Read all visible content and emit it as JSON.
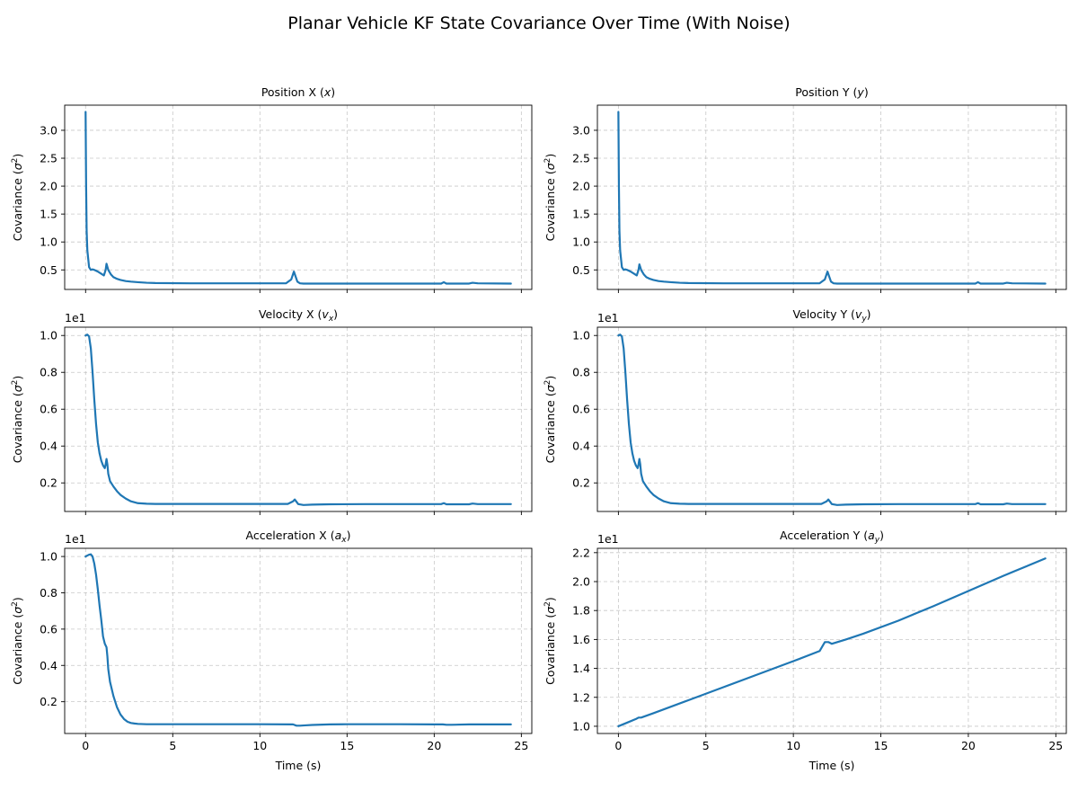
{
  "figure": {
    "title": "Planar Vehicle KF State Covariance Over Time  (With Noise)"
  },
  "chart_data": [
    {
      "type": "line",
      "title": "Position X (x)",
      "title_base": "Position X (",
      "title_var": "x",
      "title_sub": "",
      "xlabel": "",
      "ylabel": "Covariance (σ²)",
      "offset_text": "",
      "xlim": [
        -1.2,
        25.6
      ],
      "ylim": [
        0.15,
        3.45
      ],
      "xticks": [
        0,
        5,
        10,
        15,
        20,
        25
      ],
      "xticklabels": [],
      "yticks": [
        0.5,
        1.0,
        1.5,
        2.0,
        2.5,
        3.0
      ],
      "yticklabels": [
        "0.5",
        "1.0",
        "1.5",
        "2.0",
        "2.5",
        "3.0"
      ],
      "grid": true,
      "color": "#1f77b4",
      "series": [
        {
          "x": [
            0,
            0.03,
            0.06,
            0.1,
            0.15,
            0.2,
            0.3,
            0.4,
            0.5,
            0.7,
            0.9,
            1.05,
            1.15,
            1.2,
            1.3,
            1.45,
            1.6,
            1.8,
            2.0,
            2.3,
            2.6,
            3.0,
            3.5,
            4.0,
            6.0,
            8.0,
            10.0,
            11.5,
            11.8,
            11.95,
            12.05,
            12.15,
            12.3,
            12.5,
            13.0,
            14.0,
            16.0,
            18.0,
            20.0,
            20.4,
            20.55,
            20.7,
            21.0,
            22.0,
            22.2,
            22.5,
            24.4
          ],
          "y": [
            3.33,
            2.0,
            1.2,
            0.85,
            0.7,
            0.55,
            0.5,
            0.51,
            0.5,
            0.47,
            0.43,
            0.4,
            0.5,
            0.61,
            0.5,
            0.42,
            0.37,
            0.34,
            0.32,
            0.3,
            0.29,
            0.28,
            0.27,
            0.265,
            0.26,
            0.26,
            0.26,
            0.26,
            0.33,
            0.47,
            0.38,
            0.29,
            0.26,
            0.255,
            0.255,
            0.255,
            0.255,
            0.255,
            0.255,
            0.255,
            0.28,
            0.255,
            0.255,
            0.255,
            0.27,
            0.26,
            0.255
          ]
        }
      ]
    },
    {
      "type": "line",
      "title": "Position Y (y)",
      "title_base": "Position Y (",
      "title_var": "y",
      "title_sub": "",
      "xlabel": "",
      "ylabel": "Covariance (σ²)",
      "offset_text": "",
      "xlim": [
        -1.2,
        25.6
      ],
      "ylim": [
        0.15,
        3.45
      ],
      "xticks": [
        0,
        5,
        10,
        15,
        20,
        25
      ],
      "xticklabels": [],
      "yticks": [
        0.5,
        1.0,
        1.5,
        2.0,
        2.5,
        3.0
      ],
      "yticklabels": [
        "0.5",
        "1.0",
        "1.5",
        "2.0",
        "2.5",
        "3.0"
      ],
      "grid": true,
      "color": "#1f77b4",
      "series": [
        {
          "x": [
            0,
            0.03,
            0.06,
            0.1,
            0.15,
            0.2,
            0.3,
            0.4,
            0.5,
            0.7,
            0.9,
            1.05,
            1.15,
            1.2,
            1.3,
            1.45,
            1.6,
            1.8,
            2.0,
            2.3,
            2.6,
            3.0,
            3.5,
            4.0,
            6.0,
            8.0,
            10.0,
            11.5,
            11.8,
            11.95,
            12.05,
            12.15,
            12.3,
            12.5,
            13.0,
            14.0,
            16.0,
            18.0,
            20.0,
            20.4,
            20.55,
            20.7,
            21.0,
            22.0,
            22.2,
            22.5,
            24.4
          ],
          "y": [
            3.33,
            2.0,
            1.2,
            0.85,
            0.7,
            0.55,
            0.5,
            0.51,
            0.5,
            0.47,
            0.43,
            0.4,
            0.5,
            0.6,
            0.5,
            0.42,
            0.37,
            0.34,
            0.32,
            0.3,
            0.29,
            0.28,
            0.27,
            0.265,
            0.26,
            0.26,
            0.26,
            0.26,
            0.33,
            0.47,
            0.38,
            0.29,
            0.26,
            0.255,
            0.255,
            0.255,
            0.255,
            0.255,
            0.255,
            0.255,
            0.28,
            0.255,
            0.255,
            0.255,
            0.27,
            0.26,
            0.255
          ]
        }
      ]
    },
    {
      "type": "line",
      "title": "Velocity X (vx)",
      "title_base": "Velocity X (",
      "title_var": "v",
      "title_sub": "x",
      "xlabel": "",
      "ylabel": "Covariance (σ²)",
      "offset_text": "1e1",
      "xlim": [
        -1.2,
        25.6
      ],
      "ylim": [
        0.045,
        1.045
      ],
      "xticks": [
        0,
        5,
        10,
        15,
        20,
        25
      ],
      "xticklabels": [],
      "yticks": [
        0.2,
        0.4,
        0.6,
        0.8,
        1.0
      ],
      "yticklabels": [
        "0.2",
        "0.4",
        "0.6",
        "0.8",
        "1.0"
      ],
      "grid": true,
      "color": "#1f77b4",
      "series": [
        {
          "x": [
            0,
            0.1,
            0.2,
            0.3,
            0.4,
            0.5,
            0.6,
            0.7,
            0.8,
            0.9,
            1.0,
            1.1,
            1.15,
            1.2,
            1.25,
            1.3,
            1.4,
            1.6,
            1.8,
            2.0,
            2.3,
            2.6,
            3.0,
            3.5,
            4.0,
            6.0,
            8.0,
            10.0,
            11.6,
            11.9,
            12.0,
            12.2,
            12.5,
            13.0,
            14.0,
            16.0,
            18.0,
            20.0,
            20.4,
            20.55,
            20.7,
            21.0,
            22.0,
            22.2,
            22.5,
            24.4
          ],
          "y": [
            1.0,
            1.005,
            0.995,
            0.93,
            0.8,
            0.65,
            0.52,
            0.42,
            0.36,
            0.32,
            0.295,
            0.28,
            0.3,
            0.33,
            0.3,
            0.25,
            0.21,
            0.18,
            0.155,
            0.135,
            0.115,
            0.1,
            0.09,
            0.087,
            0.086,
            0.086,
            0.086,
            0.086,
            0.086,
            0.1,
            0.11,
            0.085,
            0.08,
            0.082,
            0.084,
            0.085,
            0.085,
            0.085,
            0.085,
            0.09,
            0.084,
            0.084,
            0.084,
            0.088,
            0.085,
            0.085
          ]
        }
      ]
    },
    {
      "type": "line",
      "title": "Velocity Y (vy)",
      "title_base": "Velocity Y (",
      "title_var": "v",
      "title_sub": "y",
      "xlabel": "",
      "ylabel": "Covariance (σ²)",
      "offset_text": "1e1",
      "xlim": [
        -1.2,
        25.6
      ],
      "ylim": [
        0.045,
        1.045
      ],
      "xticks": [
        0,
        5,
        10,
        15,
        20,
        25
      ],
      "xticklabels": [],
      "yticks": [
        0.2,
        0.4,
        0.6,
        0.8,
        1.0
      ],
      "yticklabels": [
        "0.2",
        "0.4",
        "0.6",
        "0.8",
        "1.0"
      ],
      "grid": true,
      "color": "#1f77b4",
      "series": [
        {
          "x": [
            0,
            0.1,
            0.2,
            0.3,
            0.4,
            0.5,
            0.6,
            0.7,
            0.8,
            0.9,
            1.0,
            1.1,
            1.15,
            1.2,
            1.25,
            1.3,
            1.4,
            1.6,
            1.8,
            2.0,
            2.3,
            2.6,
            3.0,
            3.5,
            4.0,
            6.0,
            8.0,
            10.0,
            11.6,
            11.9,
            12.0,
            12.2,
            12.5,
            13.0,
            14.0,
            16.0,
            18.0,
            20.0,
            20.4,
            20.55,
            20.7,
            21.0,
            22.0,
            22.2,
            22.5,
            24.4
          ],
          "y": [
            1.0,
            1.005,
            0.995,
            0.93,
            0.8,
            0.65,
            0.52,
            0.42,
            0.36,
            0.32,
            0.295,
            0.28,
            0.3,
            0.33,
            0.3,
            0.25,
            0.21,
            0.18,
            0.155,
            0.135,
            0.115,
            0.1,
            0.09,
            0.087,
            0.086,
            0.086,
            0.086,
            0.086,
            0.086,
            0.1,
            0.11,
            0.085,
            0.08,
            0.082,
            0.084,
            0.085,
            0.085,
            0.085,
            0.085,
            0.09,
            0.084,
            0.084,
            0.084,
            0.088,
            0.085,
            0.085
          ]
        }
      ]
    },
    {
      "type": "line",
      "title": "Acceleration X (ax)",
      "title_base": "Acceleration X (",
      "title_var": "a",
      "title_sub": "x",
      "xlabel": "Time (s)",
      "ylabel": "Covariance (σ²)",
      "offset_text": "1e1",
      "xlim": [
        -1.2,
        25.6
      ],
      "ylim": [
        0.025,
        1.045
      ],
      "xticks": [
        0,
        5,
        10,
        15,
        20,
        25
      ],
      "xticklabels": [
        "0",
        "5",
        "10",
        "15",
        "20",
        "25"
      ],
      "yticks": [
        0.2,
        0.4,
        0.6,
        0.8,
        1.0
      ],
      "yticklabels": [
        "0.2",
        "0.4",
        "0.6",
        "0.8",
        "1.0"
      ],
      "grid": true,
      "color": "#1f77b4",
      "series": [
        {
          "x": [
            0,
            0.1,
            0.2,
            0.3,
            0.4,
            0.5,
            0.6,
            0.7,
            0.8,
            0.9,
            1.0,
            1.1,
            1.2,
            1.25,
            1.3,
            1.4,
            1.6,
            1.8,
            2.0,
            2.2,
            2.4,
            2.6,
            2.8,
            3.0,
            3.5,
            4.0,
            6.0,
            8.0,
            10.0,
            11.9,
            12.1,
            12.3,
            12.6,
            13.0,
            14.0,
            15.0,
            18.0,
            20.0,
            20.5,
            20.7,
            21.0,
            22.0,
            24.4
          ],
          "y": [
            1.0,
            1.005,
            1.01,
            1.012,
            1.0,
            0.96,
            0.9,
            0.82,
            0.73,
            0.65,
            0.56,
            0.52,
            0.5,
            0.45,
            0.38,
            0.31,
            0.23,
            0.17,
            0.13,
            0.105,
            0.09,
            0.083,
            0.08,
            0.078,
            0.076,
            0.076,
            0.076,
            0.076,
            0.076,
            0.075,
            0.068,
            0.068,
            0.07,
            0.072,
            0.075,
            0.076,
            0.076,
            0.075,
            0.075,
            0.073,
            0.073,
            0.075,
            0.075
          ]
        }
      ]
    },
    {
      "type": "line",
      "title": "Acceleration Y (ay)",
      "title_base": "Acceleration Y (",
      "title_var": "a",
      "title_sub": "y",
      "xlabel": "Time (s)",
      "ylabel": "Covariance (σ²)",
      "offset_text": "1e1",
      "xlim": [
        -1.2,
        25.6
      ],
      "ylim": [
        0.95,
        2.23
      ],
      "xticks": [
        0,
        5,
        10,
        15,
        20,
        25
      ],
      "xticklabels": [
        "0",
        "5",
        "10",
        "15",
        "20",
        "25"
      ],
      "yticks": [
        1.0,
        1.2,
        1.4,
        1.6,
        1.8,
        2.0,
        2.2
      ],
      "yticklabels": [
        "1.0",
        "1.2",
        "1.4",
        "1.6",
        "1.8",
        "2.0",
        "2.2"
      ],
      "grid": true,
      "color": "#1f77b4",
      "series": [
        {
          "x": [
            0,
            0.5,
            1.0,
            1.15,
            1.3,
            2.0,
            4.0,
            6.0,
            8.0,
            10.0,
            11.5,
            11.8,
            12.0,
            12.2,
            12.6,
            13.0,
            14.0,
            16.0,
            18.0,
            20.0,
            22.0,
            24.4
          ],
          "y": [
            1.0,
            1.025,
            1.05,
            1.06,
            1.06,
            1.09,
            1.18,
            1.27,
            1.36,
            1.45,
            1.52,
            1.582,
            1.582,
            1.57,
            1.585,
            1.6,
            1.64,
            1.73,
            1.83,
            1.935,
            2.04,
            2.16
          ]
        }
      ]
    }
  ]
}
